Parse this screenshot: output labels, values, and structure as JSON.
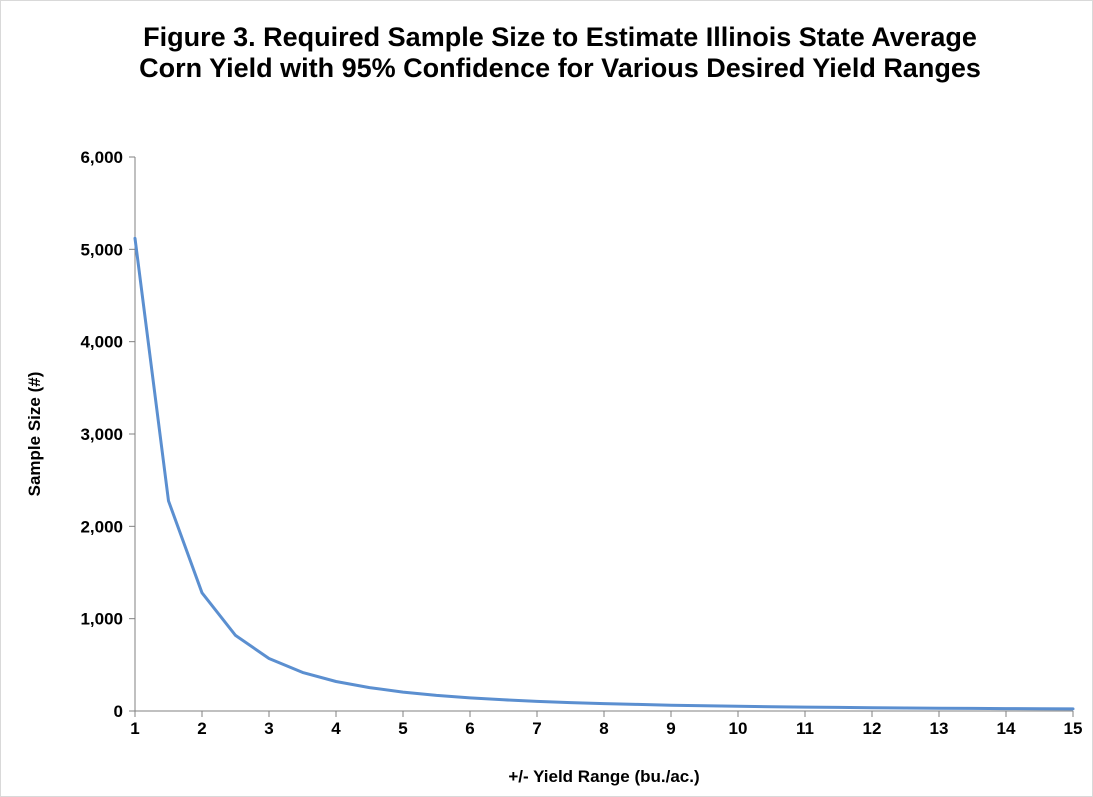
{
  "chart_data": {
    "type": "line",
    "title": "Figure 3. Required Sample Size to Estimate Illinois State Average Corn Yield with 95% Confidence for Various Desired Yield Ranges",
    "xlabel": "+/- Yield Range (bu./ac.)",
    "ylabel": "Sample Size (#)",
    "xlim": [
      1,
      15
    ],
    "ylim": [
      0,
      6000
    ],
    "x_ticks": [
      1,
      2,
      3,
      4,
      5,
      6,
      7,
      8,
      9,
      10,
      11,
      12,
      13,
      14,
      15
    ],
    "y_ticks": [
      0,
      1000,
      2000,
      3000,
      4000,
      5000,
      6000
    ],
    "y_tick_labels": [
      "0",
      "1,000",
      "2,000",
      "3,000",
      "4,000",
      "5,000",
      "6,000"
    ],
    "grid": false,
    "legend": "none",
    "series": [
      {
        "color": "#5b8fd0",
        "x": [
          1,
          1.5,
          2,
          2.5,
          3,
          3.5,
          4,
          4.5,
          5,
          5.5,
          6,
          6.5,
          7,
          7.5,
          8,
          8.5,
          9,
          9.5,
          10,
          10.5,
          11,
          11.5,
          12,
          12.5,
          13,
          13.5,
          14,
          14.5,
          15
        ],
        "y": [
          5120,
          2275,
          1280,
          819,
          569,
          418,
          320,
          253,
          205,
          169,
          142,
          121,
          104,
          91,
          80,
          71,
          63,
          57,
          51,
          46,
          42,
          39,
          36,
          33,
          30,
          28,
          26,
          24,
          23
        ]
      }
    ]
  }
}
